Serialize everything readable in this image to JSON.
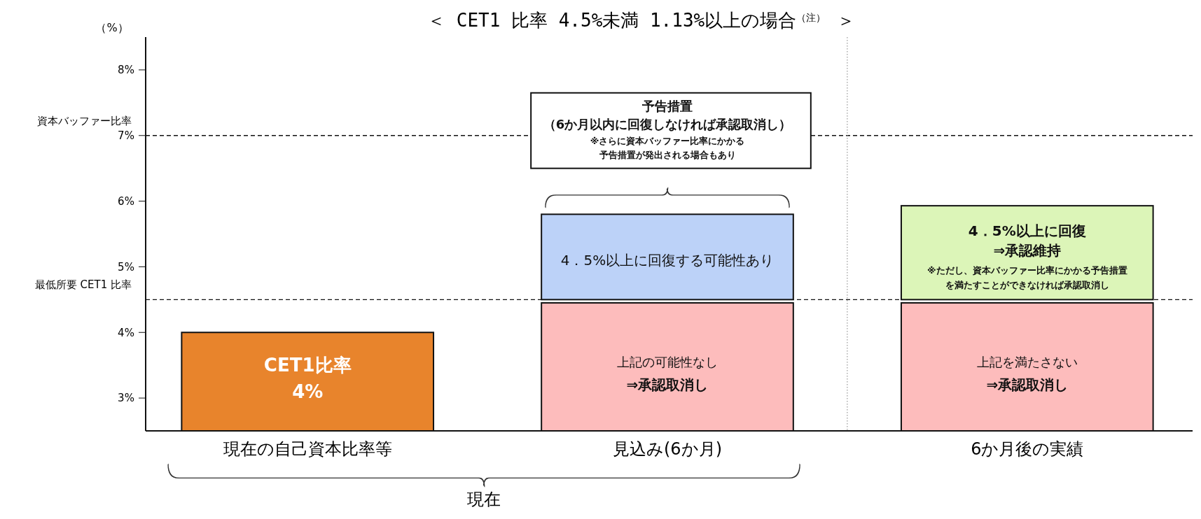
{
  "chart_data": {
    "type": "bar",
    "title": "＜ CET1 比率 4.5%未満 1.13%以上の場合$^{（注）}$ ＞",
    "ylabel": "（%）",
    "categories": [
      "現在の自己資本比率等",
      "見込み(6か月)",
      "6か月後の実績"
    ],
    "series": [
      {
        "values": [
          1.5,
          1.95,
          1.95
        ],
        "base": [
          2.5,
          2.5,
          2.5
        ],
        "colors": [
          "#e8842c",
          "#fdbcbc",
          "#fdbcbc"
        ]
      },
      {
        "values": [
          null,
          1.3,
          1.43
        ],
        "base": [
          null,
          4.5,
          4.5
        ],
        "colors": [
          null,
          "#bcd2f8",
          "#dcf5b8"
        ]
      }
    ],
    "ylim": [
      2.5,
      8.5
    ],
    "yticks": [
      {
        "value": 3,
        "label": "3%"
      },
      {
        "value": 4,
        "label": "4%"
      },
      {
        "value": 5,
        "label": "5%"
      },
      {
        "value": 6,
        "label": "6%"
      },
      {
        "value": 7,
        "label": "7%"
      },
      {
        "value": 8,
        "label": "8%"
      }
    ],
    "ref_lines": [
      {
        "axis": "y",
        "value": 7,
        "label": "資本バッファー比率",
        "line_style": "dashed"
      },
      {
        "axis": "y",
        "value": 4.5,
        "label": "最低所要 CET1 比率",
        "line_style": "dashed"
      }
    ],
    "annotations": [
      "CET1比率",
      "4%",
      "4．5%以上に回復する可能性あり",
      "上記の可能性なし",
      "⇒承認取消し",
      "4．5%以上に回復",
      "⇒承認維持",
      "※ただし、資本バッファー比率にかかる予告措置",
      "を満たすことができなければ承認取消し",
      "上記を満たさない",
      "⇒承認取消し",
      "予告措置",
      "（6か月以内に回復しなければ承認取消し）",
      "※さらに資本バッファー比率にかかる",
      "予告措置が発出される場合もあり",
      "現在"
    ]
  }
}
